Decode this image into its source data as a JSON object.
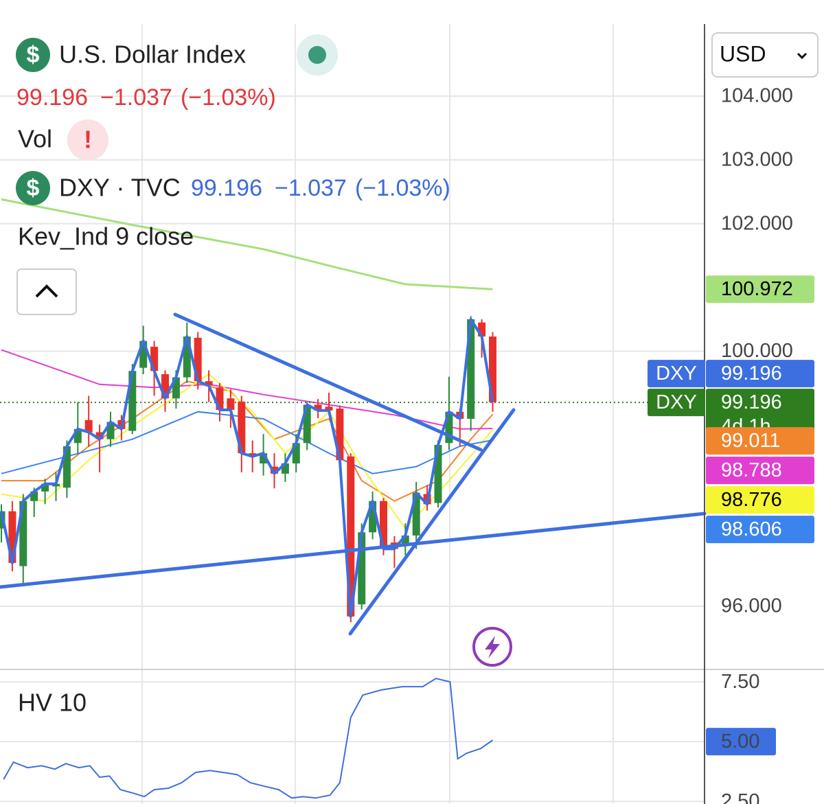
{
  "header": {
    "title": "U.S. Dollar Index",
    "price": "99.196",
    "change": "−1.037",
    "change_pct": "(−1.03%)",
    "vol_label": "Vol",
    "symbol": "DXY · TVC",
    "symbol_price": "99.196",
    "symbol_change": "−1.037",
    "symbol_change_pct": "(−1.03%)",
    "indicator": "Kev_Ind 9 close",
    "currency": "USD"
  },
  "chart_data": [
    {
      "type": "candlestick",
      "open": [
        97.22,
        97.49,
        96.63,
        97.65,
        97.8,
        97.88,
        97.86,
        98.56,
        98.92,
        98.73,
        98.62,
        98.92,
        98.75,
        99.74,
        100.07,
        99.64,
        99.26,
        99.59,
        100.21,
        99.53,
        99.43,
        99.26,
        99.21,
        98.4,
        98.24,
        98.19,
        98.08,
        98.24,
        98.56,
        99.16,
        99.13,
        99.1,
        98.35,
        96.03,
        97.16,
        97.65,
        97.0,
        96.95,
        97.11,
        97.76,
        97.62,
        98.56,
        99.05,
        98.94,
        100.45,
        100.23
      ],
      "high": [
        97.6,
        97.65,
        97.76,
        97.86,
        98.0,
        98.1,
        98.6,
        99.2,
        99.3,
        98.85,
        99.05,
        99.0,
        99.8,
        100.4,
        100.16,
        99.7,
        99.7,
        100.45,
        100.3,
        99.7,
        99.5,
        99.4,
        99.3,
        98.6,
        98.7,
        98.4,
        98.4,
        98.7,
        99.2,
        99.25,
        99.35,
        99.15,
        98.4,
        97.3,
        97.8,
        97.7,
        97.1,
        97.3,
        97.95,
        97.9,
        98.6,
        99.6,
        99.1,
        100.55,
        100.5,
        100.3
      ],
      "low": [
        97.0,
        96.55,
        96.35,
        97.4,
        97.6,
        97.65,
        97.7,
        98.4,
        98.5,
        98.1,
        98.5,
        98.6,
        98.7,
        99.64,
        99.3,
        99.05,
        99.1,
        99.5,
        99.4,
        99.2,
        98.9,
        98.8,
        98.1,
        98.1,
        98.05,
        97.85,
        97.95,
        98.1,
        98.45,
        98.95,
        99.0,
        98.2,
        95.75,
        95.95,
        97.05,
        96.8,
        96.6,
        96.8,
        96.9,
        97.5,
        97.55,
        98.45,
        98.5,
        98.75,
        99.9,
        99.05
      ],
      "close": [
        97.49,
        96.68,
        97.65,
        97.8,
        97.92,
        97.92,
        98.51,
        98.78,
        98.73,
        98.62,
        98.89,
        98.78,
        99.69,
        100.16,
        99.69,
        99.26,
        99.59,
        100.23,
        99.53,
        99.46,
        99.08,
        99.08,
        98.4,
        98.35,
        98.4,
        98.08,
        98.24,
        98.56,
        99.16,
        99.07,
        99.07,
        98.29,
        95.84,
        97.16,
        97.65,
        96.9,
        96.9,
        97.11,
        97.78,
        97.6,
        98.53,
        99.05,
        98.94,
        100.5,
        100.23,
        99.2
      ],
      "up_color": "#2e8b3e",
      "down_color": "#e8302a",
      "close_line_color": "#3d6fe0",
      "ylim": [
        95.01,
        105.13
      ],
      "yticks": [
        {
          "value": 104,
          "label": "104.000"
        },
        {
          "value": 103,
          "label": "103.000"
        },
        {
          "value": 102,
          "label": "102.000"
        },
        {
          "value": 100,
          "label": "100.000"
        },
        {
          "value": 96,
          "label": "96.000"
        }
      ],
      "grid": true,
      "last_price": 99.196,
      "price_badges": [
        {
          "label": "DXY",
          "value": 99.196,
          "color": "#3d6fe0"
        },
        {
          "label": "DXY",
          "value": 99.196,
          "sublabel": "4d 1h",
          "color": "#2e7d1f"
        }
      ],
      "ma": [
        {
          "color": "#a6e07a",
          "text_color": "#000000",
          "x": [
            0,
            12,
            24,
            31,
            37,
            45
          ],
          "values": [
            102.38,
            101.98,
            101.6,
            101.3,
            101.05,
            100.972
          ]
        },
        {
          "color": "#f0852d",
          "text_color": "#ffffff",
          "x": [
            0,
            4,
            8,
            12,
            17,
            21,
            25,
            30,
            33,
            36,
            40,
            43,
            45
          ],
          "values": [
            97.97,
            97.97,
            98.51,
            98.94,
            99.53,
            99.37,
            98.62,
            98.94,
            97.97,
            97.65,
            97.97,
            98.62,
            99.011
          ]
        },
        {
          "color": "#e03fd0",
          "text_color": "#ffffff",
          "x": [
            0,
            9,
            14,
            19,
            24,
            30,
            36,
            42,
            45
          ],
          "values": [
            100.02,
            99.48,
            99.43,
            99.48,
            99.32,
            99.16,
            99.0,
            98.78,
            98.788
          ]
        },
        {
          "color": "#f5f532",
          "text_color": "#000000",
          "x": [
            0,
            4,
            8,
            12,
            19,
            23,
            26,
            30,
            33,
            37,
            41,
            44,
            45
          ],
          "values": [
            97.76,
            97.65,
            98.29,
            98.83,
            99.64,
            99.05,
            98.4,
            99.05,
            98.19,
            97.22,
            97.97,
            98.56,
            98.776
          ]
        },
        {
          "color": "#3b84ee",
          "text_color": "#ffffff",
          "x": [
            0,
            6,
            12,
            18,
            24,
            30,
            34,
            38,
            42,
            45
          ],
          "values": [
            98.08,
            98.35,
            98.62,
            99.05,
            98.94,
            98.4,
            98.08,
            98.19,
            98.51,
            98.606
          ]
        }
      ]
    },
    {
      "type": "line",
      "title": "HV 10",
      "series": [
        {
          "color": "#3d6fe0",
          "x": [
            0.2,
            1.1,
            2.4,
            3.7,
            4.9,
            5.9,
            7.1,
            8.1,
            9.0,
            9.9,
            10.9,
            12.1,
            13.1,
            14.0,
            15.3,
            16.5,
            17.8,
            19.1,
            20.3,
            21.6,
            22.8,
            24.1,
            25.4,
            26.6,
            27.6,
            28.8,
            30.1,
            31.0,
            32.0,
            33.1,
            34.8,
            36.7,
            38.6,
            39.8,
            41.1,
            41.8,
            42.6,
            43.9,
            45.0
          ],
          "values": [
            3.42,
            4.14,
            3.91,
            3.99,
            3.85,
            4.08,
            3.91,
            3.99,
            3.51,
            3.56,
            2.99,
            2.84,
            2.7,
            2.99,
            3.05,
            3.28,
            3.71,
            3.79,
            3.71,
            3.62,
            3.28,
            3.13,
            2.99,
            2.64,
            2.7,
            2.64,
            2.76,
            3.28,
            6.01,
            6.95,
            7.16,
            7.3,
            7.3,
            7.64,
            7.5,
            4.28,
            4.51,
            4.71,
            5.06
          ]
        }
      ],
      "ylim": [
        2.39,
        8.02
      ],
      "yticks": [
        {
          "value": 7.5,
          "label": "7.50"
        },
        {
          "value": 5,
          "label": "5.00"
        },
        {
          "value": 2.5,
          "label": "2.50"
        }
      ],
      "grid": true
    }
  ]
}
